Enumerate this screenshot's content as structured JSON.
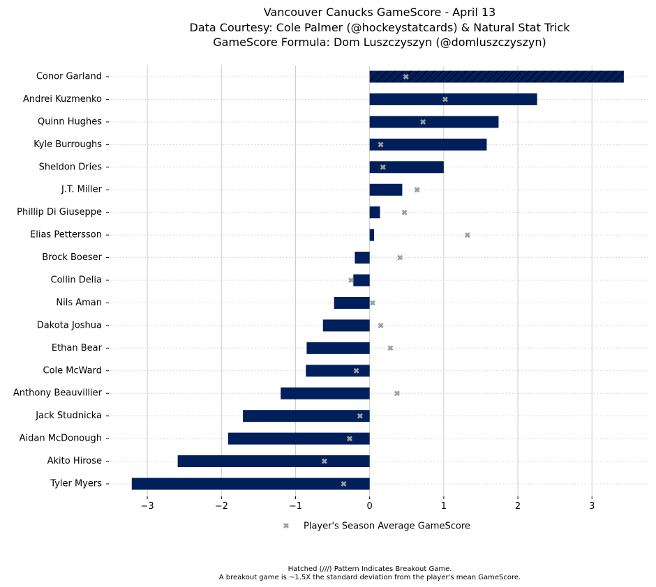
{
  "chart_data": {
    "type": "bar",
    "orientation": "horizontal",
    "title_lines": [
      "Vancouver Canucks GameScore - April 13",
      "Data Courtesy: Cole Palmer (@hockeystatcards) & Natural Stat Trick",
      "GameScore Formula: Dom Luszczyszyn (@domluszczyszyn)"
    ],
    "categories": [
      "Conor Garland",
      "Andrei Kuzmenko",
      "Quinn Hughes",
      "Kyle Burroughs",
      "Sheldon Dries",
      "J.T. Miller",
      "Phillip Di Giuseppe",
      "Elias Pettersson",
      "Brock Boeser",
      "Collin Delia",
      "Nils Aman",
      "Dakota Joshua",
      "Ethan Bear",
      "Cole McWard",
      "Anthony Beauvillier",
      "Jack Studnicka",
      "Aidan McDonough",
      "Akito Hirose",
      "Tyler Myers"
    ],
    "values": [
      3.43,
      2.26,
      1.74,
      1.58,
      1.0,
      0.44,
      0.14,
      0.06,
      -0.2,
      -0.22,
      -0.48,
      -0.63,
      -0.85,
      -0.86,
      -1.2,
      -1.71,
      -1.91,
      -2.59,
      -3.21
    ],
    "season_average": [
      0.49,
      1.02,
      0.72,
      0.15,
      0.18,
      0.64,
      0.47,
      1.32,
      0.41,
      -0.25,
      0.04,
      0.15,
      0.28,
      -0.18,
      0.37,
      -0.13,
      -0.27,
      -0.61,
      -0.35
    ],
    "breakout": [
      true,
      false,
      false,
      false,
      false,
      false,
      false,
      false,
      false,
      false,
      false,
      false,
      false,
      false,
      false,
      false,
      false,
      false,
      false
    ],
    "xlim": [
      -3.5,
      3.77
    ],
    "xticks": [
      "−3",
      "−2",
      "−1",
      "0",
      "1",
      "2",
      "3"
    ],
    "xtick_values": [
      -3,
      -2,
      -1,
      0,
      1,
      2,
      3
    ],
    "grid": {
      "x_major": true,
      "y_dotted": true
    },
    "legend": {
      "label": "Player's Season Average GameScore",
      "position": "bottom-center"
    },
    "footnote_lines": [
      "Hatched (///) Pattern Indicates Breakout Game.",
      "A breakout game is ~1.5X the standard deviation from the player's mean GameScore."
    ],
    "colors": {
      "bar": "#001f5b",
      "marker": "#9e9e9e",
      "grid": "#cccccc"
    }
  }
}
